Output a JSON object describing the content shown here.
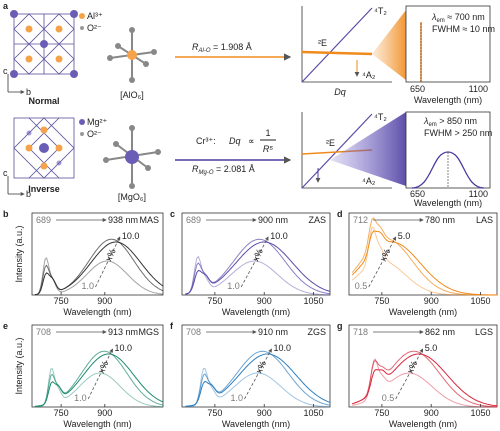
{
  "panel_a": {
    "label": "a",
    "normal": {
      "name": "Normal",
      "legend": [
        "Al³⁺",
        "O²⁻"
      ],
      "axes": [
        "c",
        "b"
      ],
      "octahedron": "[AlO₆]",
      "r_symbol": "R",
      "r_sub": "Al-O",
      "r_value": " = 1.908 Å",
      "levels": {
        "e": "²E",
        "t2": "⁴T₂",
        "a2": "⁴A₂",
        "dq": "Dq"
      },
      "inset": {
        "lambda_symbol": "λ",
        "lambda_sub": "em",
        "lambda_value": " ≈ 700 nm",
        "fwhm": "FWHM ≈ 10 nm",
        "ticks": [
          "650",
          "1100"
        ],
        "xlabel": "Wavelength (nm)"
      }
    },
    "inverse": {
      "name": "Inverse",
      "legend": [
        "Mg²⁺",
        "O²⁻"
      ],
      "axes": [
        "c",
        "b"
      ],
      "octahedron": "[MgO₆]",
      "r_symbol": "R",
      "r_sub": "Mg-O",
      "r_value": " = 2.081 Å",
      "levels": {
        "e": "²E",
        "t2": "⁴T₂",
        "a2": "⁴A₂"
      },
      "inset": {
        "lambda_symbol": "λ",
        "lambda_sub": "em",
        "lambda_value": " > 850 nm",
        "fwhm": "FWHM > 250 nm",
        "ticks": [
          "650",
          "1100"
        ],
        "xlabel": "Wavelength (nm)"
      }
    },
    "formula": {
      "ion": "Cr³⁺:",
      "dq": "Dq",
      "prop": "∝",
      "num": "1",
      "den": "R⁵"
    }
  },
  "panels": [
    {
      "label": "b",
      "name": "MAS",
      "start": "689",
      "end": "938 nm",
      "high": "10.0",
      "low": "1.0",
      "x": "x%",
      "ticks": [
        "750",
        "900"
      ],
      "xlabel": "Wavelength (nm)",
      "ylabel": "Intensity (a.u.)",
      "color": "#333333"
    },
    {
      "label": "c",
      "name": "ZAS",
      "start": "689",
      "end": "900 nm",
      "high": "10.0",
      "low": "1.0",
      "x": "x%",
      "ticks": [
        "750",
        "900",
        "1050"
      ],
      "xlabel": "Wavelength (nm)",
      "color": "#5b4ba8"
    },
    {
      "label": "d",
      "name": "LAS",
      "start": "712",
      "end": "780 nm",
      "high": "5.0",
      "low": "0.5",
      "x": "x%",
      "ticks": [
        "750",
        "900",
        "1050"
      ],
      "xlabel": "Wavelength (nm)",
      "color": "#f08a1c"
    },
    {
      "label": "e",
      "name": "MGS",
      "start": "708",
      "end": "913 nm",
      "high": "10.0",
      "low": "1.0",
      "x": "x%",
      "ticks": [
        "750",
        "900"
      ],
      "xlabel": "Wavelength (nm)",
      "ylabel": "Intensity (a.u.)",
      "color": "#1d8a6e"
    },
    {
      "label": "f",
      "name": "ZGS",
      "start": "708",
      "end": "910 nm",
      "high": "10.0",
      "low": "1.0",
      "x": "x%",
      "ticks": [
        "750",
        "900",
        "1050"
      ],
      "xlabel": "Wavelength (nm)",
      "color": "#2f7fc1"
    },
    {
      "label": "g",
      "name": "LGS",
      "start": "718",
      "end": "862 nm",
      "high": "5.0",
      "low": "0.5",
      "x": "x%",
      "ticks": [
        "750",
        "900",
        "1050"
      ],
      "xlabel": "Wavelength (nm)",
      "color": "#d8283c"
    }
  ]
}
